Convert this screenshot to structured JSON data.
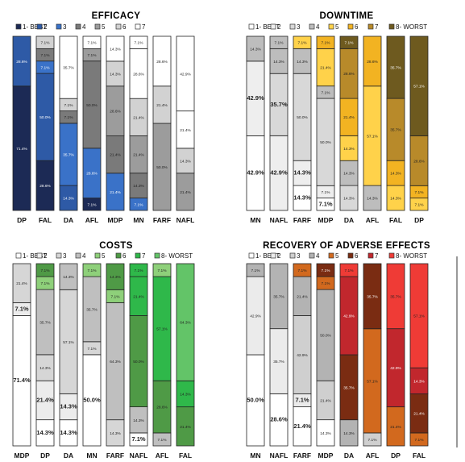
{
  "chart_data": [
    {
      "type": "bar",
      "stacked": true,
      "title": "EFFICACY",
      "legend": {
        "position": "top",
        "entries": [
          "1- BEST",
          "2",
          "3",
          "4",
          "5",
          "6",
          "7"
        ]
      },
      "colors": [
        "#1c2a55",
        "#2e5aa6",
        "#3a72c8",
        "#7a7a7a",
        "#9c9c9c",
        "#d2d2d2",
        "#ffffff"
      ],
      "categories": [
        "DP",
        "FAL",
        "DA",
        "AFL",
        "MDP",
        "MN",
        "FARF",
        "NAFL"
      ],
      "segments": [
        [
          {
            "rank": 1,
            "value": 71.4,
            "label": "71.4%"
          },
          {
            "rank": 2,
            "value": 28.6,
            "label": "28.6%"
          }
        ],
        [
          {
            "rank": 1,
            "value": 28.6,
            "label": "28.6%"
          },
          {
            "rank": 2,
            "value": 50.0,
            "label": "50.0%"
          },
          {
            "rank": 3,
            "value": 7.1,
            "label": "7.1%"
          },
          {
            "rank": 4,
            "value": 7.1,
            "label": "7.1%"
          },
          {
            "rank": 6,
            "value": 7.1,
            "label": "7.1%"
          }
        ],
        [
          {
            "rank": 2,
            "value": 14.3,
            "label": "14.3%"
          },
          {
            "rank": 3,
            "value": 35.7,
            "label": "35.7%"
          },
          {
            "rank": 4,
            "value": 7.1,
            "label": "7.1%"
          },
          {
            "rank": 6,
            "value": 7.1,
            "label": "7.1%"
          },
          {
            "rank": 7,
            "value": 35.7,
            "label": "35.7%"
          }
        ],
        [
          {
            "rank": 1,
            "value": 7.1,
            "label": "7.1%"
          },
          {
            "rank": 3,
            "value": 28.6,
            "label": "28.6%"
          },
          {
            "rank": 4,
            "value": 50.0,
            "label": "50.0%"
          },
          {
            "rank": 5,
            "value": 7.1,
            "label": "7.1%"
          },
          {
            "rank": 7,
            "value": 7.1,
            "label": "7.1%"
          }
        ],
        [
          {
            "rank": 3,
            "value": 21.4,
            "label": "21.4%"
          },
          {
            "rank": 4,
            "value": 21.4,
            "label": "21.4%"
          },
          {
            "rank": 5,
            "value": 28.6,
            "label": "28.6%"
          },
          {
            "rank": 6,
            "value": 14.3,
            "label": "14.3%"
          },
          {
            "rank": 7,
            "value": 14.3,
            "label": "14.3%"
          }
        ],
        [
          {
            "rank": 3,
            "value": 7.1,
            "label": "7.1%"
          },
          {
            "rank": 4,
            "value": 14.3,
            "label": "14.3%"
          },
          {
            "rank": 5,
            "value": 21.4,
            "label": "21.4%"
          },
          {
            "rank": 6,
            "value": 21.4,
            "label": "21.4%"
          },
          {
            "rank": 7,
            "value": 28.6,
            "label": "28.6%"
          },
          {
            "rank": 7,
            "value": 7.1,
            "label": "7.1%"
          }
        ],
        [
          {
            "rank": 5,
            "value": 50.0,
            "label": "50.0%"
          },
          {
            "rank": 6,
            "value": 21.4,
            "label": "21.4%"
          },
          {
            "rank": 7,
            "value": 28.6,
            "label": "28.6%"
          }
        ],
        [
          {
            "rank": 5,
            "value": 21.4,
            "label": "21.4%"
          },
          {
            "rank": 6,
            "value": 14.3,
            "label": "14.3%"
          },
          {
            "rank": 7,
            "value": 21.4,
            "label": "21.4%"
          },
          {
            "rank": 7,
            "value": 42.9,
            "label": "42.9%"
          }
        ]
      ]
    },
    {
      "type": "bar",
      "stacked": true,
      "title": "DOWNTIME",
      "legend": {
        "position": "top",
        "entries": [
          "1- BEST",
          "2",
          "3",
          "4",
          "5",
          "6",
          "7",
          "8- WORST"
        ]
      },
      "colors": [
        "#ffffff",
        "#eeeeee",
        "#d8d8d8",
        "#bdbdbd",
        "#ffd24a",
        "#f2b322",
        "#b88a2a",
        "#6e5a1f"
      ],
      "categories": [
        "MN",
        "NAFL",
        "FARF",
        "MDP",
        "DA",
        "AFL",
        "FAL",
        "DP"
      ],
      "segments": [
        [
          {
            "rank": 1,
            "value": 42.9,
            "label": "42.9%",
            "bold": true
          },
          {
            "rank": 2,
            "value": 42.9,
            "label": "42.9%",
            "bold": true
          },
          {
            "rank": 4,
            "value": 14.3,
            "label": "14.3%"
          }
        ],
        [
          {
            "rank": 2,
            "value": 42.9,
            "label": "42.9%",
            "bold": true
          },
          {
            "rank": 3,
            "value": 35.7,
            "label": "35.7%",
            "bold": true
          },
          {
            "rank": 4,
            "value": 14.3,
            "label": "14.3%"
          },
          {
            "rank": 4,
            "value": 7.1,
            "label": "7.1%"
          }
        ],
        [
          {
            "rank": 1,
            "value": 14.3,
            "label": "14.3%",
            "bold": true
          },
          {
            "rank": 2,
            "value": 14.3,
            "label": "14.3%",
            "bold": true
          },
          {
            "rank": 3,
            "value": 50.0,
            "label": "50.0%"
          },
          {
            "rank": 4,
            "value": 14.3,
            "label": "14.3%"
          },
          {
            "rank": 5,
            "value": 7.1,
            "label": "7.1%"
          }
        ],
        [
          {
            "rank": 1,
            "value": 7.1,
            "label": "7.1%",
            "bold": true
          },
          {
            "rank": 2,
            "value": 7.1,
            "label": "7.1%"
          },
          {
            "rank": 3,
            "value": 50.0,
            "label": "50.0%"
          },
          {
            "rank": 4,
            "value": 7.1,
            "label": "7.1%"
          },
          {
            "rank": 5,
            "value": 21.4,
            "label": "21.4%"
          },
          {
            "rank": 6,
            "value": 7.1,
            "label": "7.1%"
          }
        ],
        [
          {
            "rank": 3,
            "value": 14.3,
            "label": "14.3%"
          },
          {
            "rank": 4,
            "value": 14.3,
            "label": "14.3%"
          },
          {
            "rank": 5,
            "value": 14.3,
            "label": "14.3%"
          },
          {
            "rank": 6,
            "value": 21.4,
            "label": "21.4%"
          },
          {
            "rank": 7,
            "value": 28.6,
            "label": "28.6%"
          },
          {
            "rank": 8,
            "value": 7.1,
            "label": "7.1%"
          }
        ],
        [
          {
            "rank": 4,
            "value": 14.3,
            "label": "14.3%"
          },
          {
            "rank": 5,
            "value": 57.1,
            "label": "57.1%"
          },
          {
            "rank": 6,
            "value": 28.6,
            "label": "28.6%"
          }
        ],
        [
          {
            "rank": 5,
            "value": 14.3,
            "label": "14.3%"
          },
          {
            "rank": 6,
            "value": 14.3,
            "label": "14.3%"
          },
          {
            "rank": 7,
            "value": 35.7,
            "label": "35.7%"
          },
          {
            "rank": 8,
            "value": 35.7,
            "label": "35.7%"
          }
        ],
        [
          {
            "rank": 5,
            "value": 7.1,
            "label": "7.1%"
          },
          {
            "rank": 6,
            "value": 7.1,
            "label": "7.1%"
          },
          {
            "rank": 7,
            "value": 28.6,
            "label": "28.6%"
          },
          {
            "rank": 8,
            "value": 57.1,
            "label": "57.1%"
          }
        ]
      ]
    },
    {
      "type": "bar",
      "stacked": true,
      "title": "COSTS",
      "legend": {
        "position": "top",
        "entries": [
          "1- BEST",
          "2",
          "3",
          "4",
          "5",
          "6",
          "7",
          "8- WORST"
        ]
      },
      "colors": [
        "#ffffff",
        "#ececec",
        "#d6d6d6",
        "#bfbfbf",
        "#8ed07a",
        "#4f9a46",
        "#2fb84a",
        "#63c468"
      ],
      "categories": [
        "MDP",
        "DP",
        "DA",
        "MN",
        "FARF",
        "NAFL",
        "AFL",
        "FAL"
      ],
      "segments": [
        [
          {
            "rank": 1,
            "value": 71.4,
            "label": "71.4%",
            "bold": true
          },
          {
            "rank": 2,
            "value": 7.1,
            "label": "7.1%",
            "bold": true
          },
          {
            "rank": 3,
            "value": 21.4,
            "label": "21.4%"
          }
        ],
        [
          {
            "rank": 1,
            "value": 14.3,
            "label": "14.3%",
            "bold": true
          },
          {
            "rank": 2,
            "value": 21.4,
            "label": "21.4%",
            "bold": true
          },
          {
            "rank": 3,
            "value": 14.3,
            "label": "14.3%"
          },
          {
            "rank": 4,
            "value": 35.7,
            "label": "35.7%"
          },
          {
            "rank": 5,
            "value": 7.1,
            "label": "7.1%"
          },
          {
            "rank": 6,
            "value": 7.1,
            "label": "7.1%"
          }
        ],
        [
          {
            "rank": 1,
            "value": 14.3,
            "label": "14.3%",
            "bold": true
          },
          {
            "rank": 2,
            "value": 14.3,
            "label": "14.3%",
            "bold": true
          },
          {
            "rank": 3,
            "value": 57.1,
            "label": "57.1%"
          },
          {
            "rank": 4,
            "value": 14.3,
            "label": "14.3%"
          }
        ],
        [
          {
            "rank": 1,
            "value": 50.0,
            "label": "50.0%",
            "bold": true
          },
          {
            "rank": 3,
            "value": 7.1,
            "label": "7.1%"
          },
          {
            "rank": 4,
            "value": 35.7,
            "label": "35.7%"
          },
          {
            "rank": 5,
            "value": 7.1,
            "label": "7.1%"
          }
        ],
        [
          {
            "rank": 3,
            "value": 14.3,
            "label": "14.3%"
          },
          {
            "rank": 4,
            "value": 64.3,
            "label": "64.3%"
          },
          {
            "rank": 5,
            "value": 7.1,
            "label": "7.1%"
          },
          {
            "rank": 6,
            "value": 14.3,
            "label": "14.3%"
          }
        ],
        [
          {
            "rank": 1,
            "value": 7.1,
            "label": "7.1%",
            "bold": true
          },
          {
            "rank": 4,
            "value": 14.3,
            "label": "14.3%"
          },
          {
            "rank": 6,
            "value": 50.0,
            "label": "50.0%"
          },
          {
            "rank": 7,
            "value": 21.4,
            "label": "21.4%"
          },
          {
            "rank": 7,
            "value": 7.1,
            "label": "7.1%"
          }
        ],
        [
          {
            "rank": 4,
            "value": 7.1,
            "label": "7.1%"
          },
          {
            "rank": 6,
            "value": 28.6,
            "label": "28.6%"
          },
          {
            "rank": 7,
            "value": 57.1,
            "label": "57.1%"
          },
          {
            "rank": 5,
            "value": 7.1,
            "label": "7.1%"
          }
        ],
        [
          {
            "rank": 6,
            "value": 21.4,
            "label": "21.4%"
          },
          {
            "rank": 7,
            "value": 14.3,
            "label": "14.3%"
          },
          {
            "rank": 8,
            "value": 64.3,
            "label": "64.3%"
          }
        ]
      ]
    },
    {
      "type": "bar",
      "stacked": true,
      "title": "RECOVERY OF ADVERSE EFFECTS",
      "legend": {
        "position": "top",
        "entries": [
          "1- BEST",
          "2",
          "3",
          "4",
          "5",
          "6",
          "7",
          "8- WORST"
        ]
      },
      "colors": [
        "#ffffff",
        "#ebebeb",
        "#cfcfcf",
        "#b3b3b3",
        "#d2691e",
        "#7a2c12",
        "#c1272d",
        "#ef3b36"
      ],
      "categories": [
        "MN",
        "NAFL",
        "FARF",
        "MDP",
        "DA",
        "AFL",
        "DP",
        "FAL"
      ],
      "segments": [
        [
          {
            "rank": 1,
            "value": 50.0,
            "label": "50.0%",
            "bold": true
          },
          {
            "rank": 2,
            "value": 42.9,
            "label": "42.9%"
          },
          {
            "rank": 4,
            "value": 7.1,
            "label": "7.1%"
          }
        ],
        [
          {
            "rank": 1,
            "value": 28.6,
            "label": "28.6%",
            "bold": true
          },
          {
            "rank": 2,
            "value": 35.7,
            "label": "35.7%"
          },
          {
            "rank": 4,
            "value": 35.7,
            "label": "35.7%"
          }
        ],
        [
          {
            "rank": 1,
            "value": 21.4,
            "label": "21.4%",
            "bold": true
          },
          {
            "rank": 2,
            "value": 7.1,
            "label": "7.1%",
            "bold": true
          },
          {
            "rank": 3,
            "value": 42.9,
            "label": "42.9%"
          },
          {
            "rank": 4,
            "value": 21.4,
            "label": "21.4%"
          },
          {
            "rank": 5,
            "value": 7.1,
            "label": "7.1%"
          }
        ],
        [
          {
            "rank": 1,
            "value": 14.3,
            "label": "14.3%"
          },
          {
            "rank": 3,
            "value": 21.4,
            "label": "21.4%"
          },
          {
            "rank": 4,
            "value": 50.0,
            "label": "50.0%"
          },
          {
            "rank": 5,
            "value": 7.1,
            "label": "7.1%"
          },
          {
            "rank": 6,
            "value": 7.1,
            "label": "7.1%"
          }
        ],
        [
          {
            "rank": 4,
            "value": 14.3,
            "label": "14.3%"
          },
          {
            "rank": 6,
            "value": 35.7,
            "label": "35.7%"
          },
          {
            "rank": 7,
            "value": 42.9,
            "label": "42.9%"
          },
          {
            "rank": 8,
            "value": 7.1,
            "label": "7.1%"
          }
        ],
        [
          {
            "rank": 3,
            "value": 7.1,
            "label": "7.1%"
          },
          {
            "rank": 5,
            "value": 57.1,
            "label": "57.1%"
          },
          {
            "rank": 6,
            "value": 35.7,
            "label": "35.7%"
          }
        ],
        [
          {
            "rank": 5,
            "value": 21.4,
            "label": "21.4%"
          },
          {
            "rank": 7,
            "value": 42.9,
            "label": "42.9%"
          },
          {
            "rank": 8,
            "value": 35.7,
            "label": "35.7%"
          }
        ],
        [
          {
            "rank": 5,
            "value": 7.1,
            "label": "7.1%"
          },
          {
            "rank": 6,
            "value": 21.4,
            "label": "21.4%"
          },
          {
            "rank": 7,
            "value": 14.3,
            "label": "14.3%"
          },
          {
            "rank": 8,
            "value": 57.1,
            "label": "57.1%"
          }
        ]
      ]
    }
  ]
}
